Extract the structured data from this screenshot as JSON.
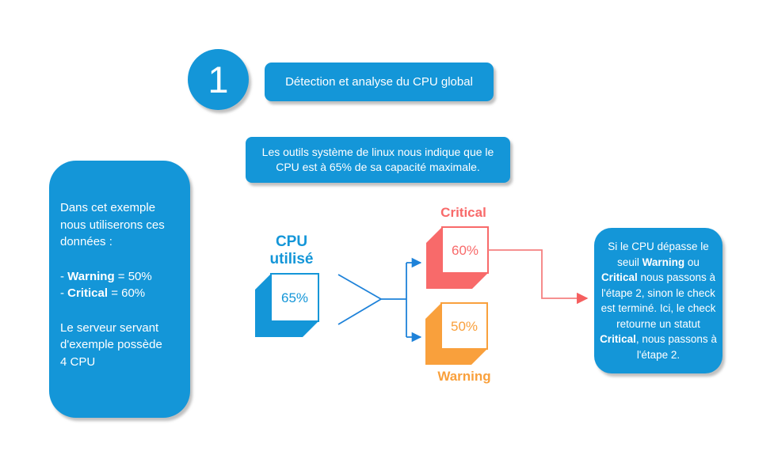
{
  "colors": {
    "blue": "#1496D8",
    "line_blue": "#1E82D9",
    "red": "#F86A6A",
    "red_line": "#F58080",
    "orange": "#F9A03C",
    "white": "#FFFFFF"
  },
  "step": {
    "number": "1",
    "title": "Détection et analyse du CPU global"
  },
  "intro": {
    "text": "Les outils système de linux nous indique que le CPU est à 65% de sa capacité maximale."
  },
  "left_box": {
    "p1": [
      {
        "t": "Dans cet exemple nous utiliserons ces données :"
      }
    ],
    "p2": [
      {
        "t": "- "
      },
      {
        "t": "Warning",
        "b": true
      },
      {
        "t": " = 50%\n- "
      },
      {
        "t": "Critical",
        "b": true
      },
      {
        "t": " = 60%"
      }
    ],
    "p3": [
      {
        "t": "Le serveur servant d'exemple possède 4 CPU"
      }
    ]
  },
  "diagram": {
    "cpu": {
      "line1": "CPU",
      "line2": "utilisé",
      "value": "65%"
    },
    "critical": {
      "label": "Critical",
      "value": "60%"
    },
    "warning": {
      "label": "Warning",
      "value": "50%"
    }
  },
  "right_box": {
    "segments": [
      {
        "t": "Si le CPU dépasse le seuil "
      },
      {
        "t": "Warning",
        "b": true
      },
      {
        "t": " ou "
      },
      {
        "t": "Critical",
        "b": true
      },
      {
        "t": " nous passons à l'étape 2, sinon le check est terminé. Ici, le check retourne un statut "
      },
      {
        "t": "Critical",
        "b": true
      },
      {
        "t": ", nous passons à l'étape 2."
      }
    ]
  }
}
